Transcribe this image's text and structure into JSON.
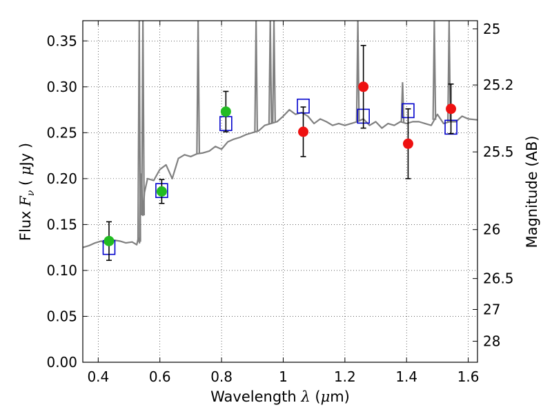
{
  "chart_data": {
    "type": "scatter",
    "title": "",
    "xlabel": "Wavelength  λ (μm)",
    "ylabel": "Flux  Fν  ( μJy )",
    "y2label": "Magnitude (AB)",
    "xlim": [
      0.35,
      1.63
    ],
    "ylim": [
      0.0,
      0.372
    ],
    "grid": true,
    "legend": "none",
    "xticks": [
      0.4,
      0.6,
      0.8,
      1.0,
      1.2,
      1.4,
      1.6
    ],
    "xtick_labels": [
      "0.4",
      "0.6",
      "0.8",
      "1",
      "1.2",
      "1.4",
      "1.6"
    ],
    "yticks": [
      0.0,
      0.05,
      0.1,
      0.15,
      0.2,
      0.25,
      0.3,
      0.35
    ],
    "ytick_labels": [
      "0.00",
      "0.05",
      "0.10",
      "0.15",
      "0.20",
      "0.25",
      "0.30",
      "0.35"
    ],
    "y2ticks": [
      {
        "label": "25",
        "flux": 0.3631
      },
      {
        "label": "25.2",
        "flux": 0.302
      },
      {
        "label": "25.5",
        "flux": 0.2291
      },
      {
        "label": "26",
        "flux": 0.1445
      },
      {
        "label": "26.5",
        "flux": 0.0912
      },
      {
        "label": "27",
        "flux": 0.0575
      },
      {
        "label": "28",
        "flux": 0.0229
      }
    ],
    "series": [
      {
        "marker": "square",
        "color": "#0000cc",
        "x": [
          0.435,
          0.606,
          0.814,
          1.065,
          1.26,
          1.405,
          1.544
        ],
        "y": [
          0.125,
          0.187,
          0.26,
          0.279,
          0.268,
          0.274,
          0.256
        ]
      },
      {
        "marker": "circle",
        "color": "#22bb22",
        "x": [
          0.435,
          0.606,
          0.814
        ],
        "y": [
          0.132,
          0.186,
          0.273
        ],
        "err": [
          0.021,
          0.013,
          0.022
        ]
      },
      {
        "marker": "circle",
        "color": "#ee1111",
        "x": [
          1.065,
          1.26,
          1.405,
          1.544
        ],
        "y": [
          0.251,
          0.3,
          0.238,
          0.276
        ],
        "err": [
          0.027,
          0.045,
          0.038,
          0.027
        ]
      },
      {
        "type": "line",
        "color": "#808080",
        "x": [
          0.35,
          0.37,
          0.39,
          0.41,
          0.43,
          0.45,
          0.47,
          0.49,
          0.51,
          0.525,
          0.53,
          0.534,
          0.537,
          0.54,
          0.545,
          0.55,
          0.56,
          0.58,
          0.6,
          0.62,
          0.64,
          0.66,
          0.68,
          0.7,
          0.72,
          0.74,
          0.76,
          0.78,
          0.8,
          0.82,
          0.84,
          0.86,
          0.88,
          0.9,
          0.92,
          0.94,
          0.96,
          0.98,
          1.0,
          1.02,
          1.04,
          1.06,
          1.08,
          1.1,
          1.12,
          1.14,
          1.16,
          1.18,
          1.2,
          1.22,
          1.24,
          1.26,
          1.28,
          1.3,
          1.32,
          1.34,
          1.36,
          1.38,
          1.4,
          1.42,
          1.44,
          1.46,
          1.48,
          1.5,
          1.52,
          1.54,
          1.56,
          1.58,
          1.6,
          1.63
        ],
        "y": [
          0.125,
          0.127,
          0.13,
          0.132,
          0.128,
          0.133,
          0.132,
          0.13,
          0.131,
          0.128,
          0.135,
          0.13,
          0.2,
          0.205,
          0.16,
          0.185,
          0.2,
          0.198,
          0.21,
          0.215,
          0.2,
          0.222,
          0.226,
          0.224,
          0.227,
          0.228,
          0.23,
          0.235,
          0.232,
          0.24,
          0.243,
          0.245,
          0.248,
          0.25,
          0.252,
          0.258,
          0.26,
          0.262,
          0.268,
          0.275,
          0.27,
          0.272,
          0.268,
          0.26,
          0.265,
          0.262,
          0.258,
          0.26,
          0.258,
          0.26,
          0.262,
          0.265,
          0.258,
          0.262,
          0.255,
          0.26,
          0.258,
          0.262,
          0.26,
          0.262,
          0.262,
          0.26,
          0.258,
          0.27,
          0.26,
          0.262,
          0.262,
          0.268,
          0.265,
          0.264
        ]
      }
    ],
    "emission_spikes": [
      {
        "x": 0.533,
        "y": 0.372
      },
      {
        "x": 0.545,
        "y": 0.372
      },
      {
        "x": 0.724,
        "y": 0.372
      },
      {
        "x": 0.912,
        "y": 0.372
      },
      {
        "x": 0.958,
        "y": 0.372
      },
      {
        "x": 0.97,
        "y": 0.372
      },
      {
        "x": 1.242,
        "y": 0.372
      },
      {
        "x": 1.387,
        "y": 0.305
      },
      {
        "x": 1.49,
        "y": 0.372
      },
      {
        "x": 1.538,
        "y": 0.372
      }
    ]
  }
}
